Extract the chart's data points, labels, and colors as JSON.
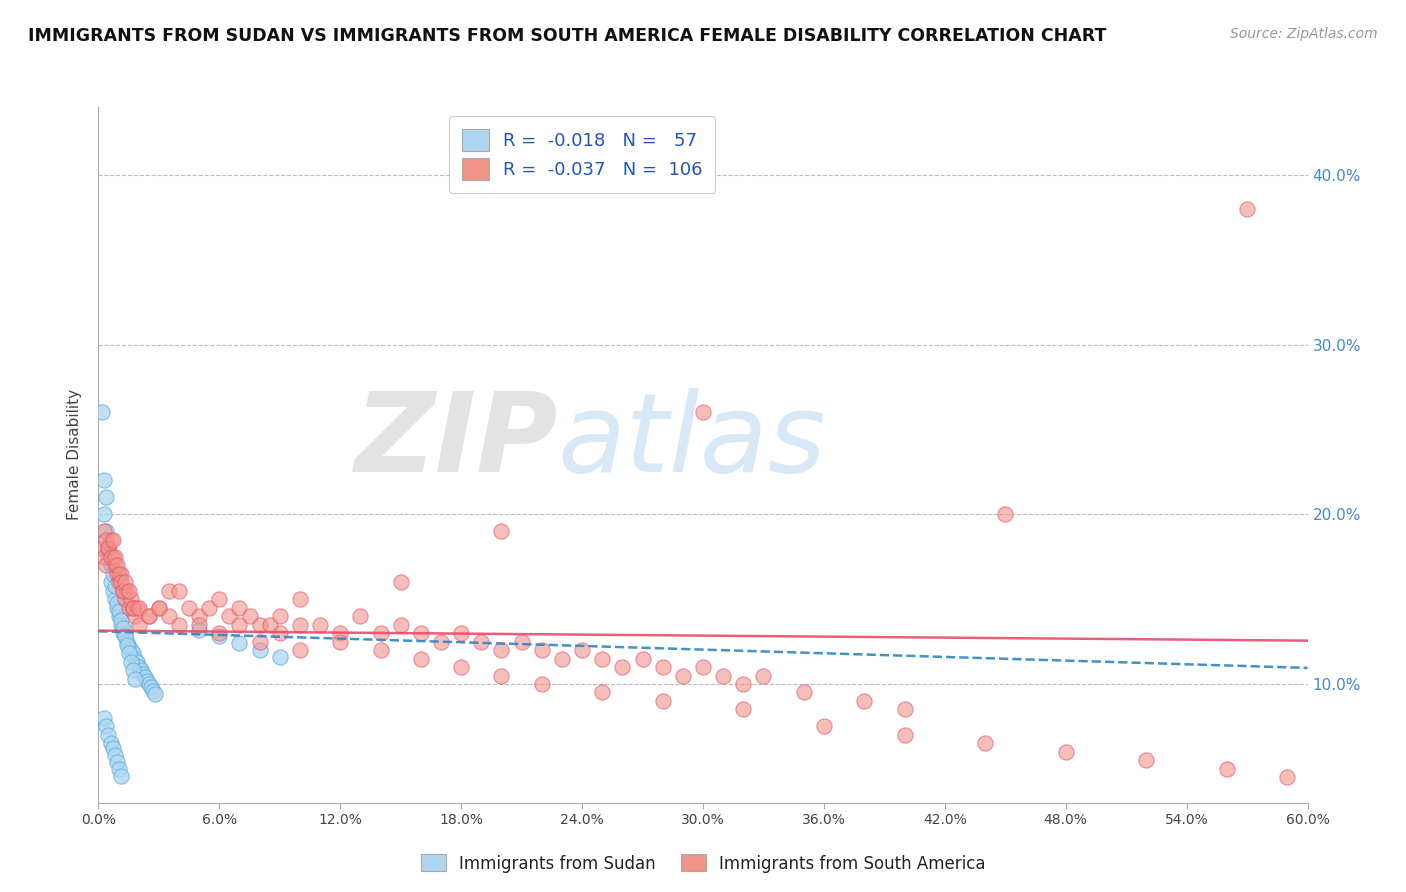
{
  "title": "IMMIGRANTS FROM SUDAN VS IMMIGRANTS FROM SOUTH AMERICA FEMALE DISABILITY CORRELATION CHART",
  "source": "Source: ZipAtlas.com",
  "ylabel": "Female Disability",
  "right_yticks": [
    "10.0%",
    "20.0%",
    "30.0%",
    "40.0%"
  ],
  "right_ytick_vals": [
    0.1,
    0.2,
    0.3,
    0.4
  ],
  "xlim": [
    0.0,
    0.6
  ],
  "ylim": [
    0.03,
    0.44
  ],
  "sudan_R": -0.018,
  "sudan_N": 57,
  "sa_R": -0.037,
  "sa_N": 106,
  "sudan_color": "#AED6F1",
  "sa_color": "#F1948A",
  "sudan_edge_color": "#5DADE2",
  "sa_edge_color": "#E74C6B",
  "sudan_line_color": "#2E86C1",
  "sa_line_color": "#E74C6B",
  "legend_label_sudan": "Immigrants from Sudan",
  "legend_label_sa": "Immigrants from South America",
  "watermark_zip": "ZIP",
  "watermark_atlas": "atlas",
  "background_color": "#FFFFFF",
  "grid_color": "#BBBBBB",
  "sudan_x": [
    0.002,
    0.003,
    0.004,
    0.005,
    0.006,
    0.007,
    0.008,
    0.009,
    0.01,
    0.011,
    0.012,
    0.013,
    0.014,
    0.015,
    0.016,
    0.017,
    0.018,
    0.019,
    0.02,
    0.021,
    0.022,
    0.023,
    0.024,
    0.025,
    0.026,
    0.027,
    0.028,
    0.003,
    0.004,
    0.005,
    0.006,
    0.007,
    0.008,
    0.009,
    0.01,
    0.011,
    0.012,
    0.013,
    0.014,
    0.015,
    0.016,
    0.017,
    0.018,
    0.003,
    0.004,
    0.005,
    0.006,
    0.007,
    0.008,
    0.009,
    0.01,
    0.011,
    0.05,
    0.06,
    0.07,
    0.08,
    0.09
  ],
  "sudan_y": [
    0.26,
    0.2,
    0.19,
    0.175,
    0.16,
    0.155,
    0.15,
    0.145,
    0.14,
    0.135,
    0.13,
    0.128,
    0.125,
    0.122,
    0.12,
    0.118,
    0.115,
    0.113,
    0.11,
    0.108,
    0.106,
    0.104,
    0.102,
    0.1,
    0.098,
    0.096,
    0.094,
    0.22,
    0.21,
    0.18,
    0.17,
    0.165,
    0.158,
    0.148,
    0.143,
    0.138,
    0.133,
    0.128,
    0.123,
    0.118,
    0.113,
    0.108,
    0.103,
    0.08,
    0.075,
    0.07,
    0.065,
    0.062,
    0.058,
    0.054,
    0.05,
    0.046,
    0.132,
    0.128,
    0.124,
    0.12,
    0.116
  ],
  "sa_x": [
    0.002,
    0.003,
    0.004,
    0.005,
    0.006,
    0.007,
    0.008,
    0.009,
    0.01,
    0.011,
    0.012,
    0.013,
    0.014,
    0.015,
    0.016,
    0.017,
    0.018,
    0.019,
    0.02,
    0.025,
    0.03,
    0.035,
    0.04,
    0.045,
    0.05,
    0.055,
    0.06,
    0.065,
    0.07,
    0.075,
    0.08,
    0.085,
    0.09,
    0.1,
    0.11,
    0.12,
    0.13,
    0.14,
    0.15,
    0.16,
    0.17,
    0.18,
    0.19,
    0.2,
    0.21,
    0.22,
    0.23,
    0.24,
    0.25,
    0.26,
    0.27,
    0.28,
    0.29,
    0.3,
    0.31,
    0.32,
    0.33,
    0.35,
    0.38,
    0.4,
    0.003,
    0.004,
    0.005,
    0.006,
    0.007,
    0.008,
    0.009,
    0.01,
    0.011,
    0.012,
    0.013,
    0.015,
    0.017,
    0.02,
    0.025,
    0.03,
    0.035,
    0.04,
    0.05,
    0.06,
    0.07,
    0.08,
    0.09,
    0.1,
    0.12,
    0.14,
    0.16,
    0.18,
    0.2,
    0.22,
    0.25,
    0.28,
    0.32,
    0.36,
    0.4,
    0.44,
    0.48,
    0.52,
    0.56,
    0.59,
    0.57,
    0.45,
    0.3,
    0.2,
    0.15,
    0.1
  ],
  "sa_y": [
    0.18,
    0.175,
    0.17,
    0.18,
    0.185,
    0.175,
    0.17,
    0.165,
    0.16,
    0.165,
    0.155,
    0.15,
    0.155,
    0.145,
    0.15,
    0.145,
    0.14,
    0.145,
    0.135,
    0.14,
    0.145,
    0.155,
    0.155,
    0.145,
    0.14,
    0.145,
    0.15,
    0.14,
    0.145,
    0.14,
    0.135,
    0.135,
    0.14,
    0.135,
    0.135,
    0.13,
    0.14,
    0.13,
    0.135,
    0.13,
    0.125,
    0.13,
    0.125,
    0.12,
    0.125,
    0.12,
    0.115,
    0.12,
    0.115,
    0.11,
    0.115,
    0.11,
    0.105,
    0.11,
    0.105,
    0.1,
    0.105,
    0.095,
    0.09,
    0.085,
    0.19,
    0.185,
    0.18,
    0.175,
    0.185,
    0.175,
    0.17,
    0.165,
    0.16,
    0.155,
    0.16,
    0.155,
    0.145,
    0.145,
    0.14,
    0.145,
    0.14,
    0.135,
    0.135,
    0.13,
    0.135,
    0.125,
    0.13,
    0.12,
    0.125,
    0.12,
    0.115,
    0.11,
    0.105,
    0.1,
    0.095,
    0.09,
    0.085,
    0.075,
    0.07,
    0.065,
    0.06,
    0.055,
    0.05,
    0.045,
    0.38,
    0.2,
    0.26,
    0.19,
    0.16,
    0.15
  ]
}
